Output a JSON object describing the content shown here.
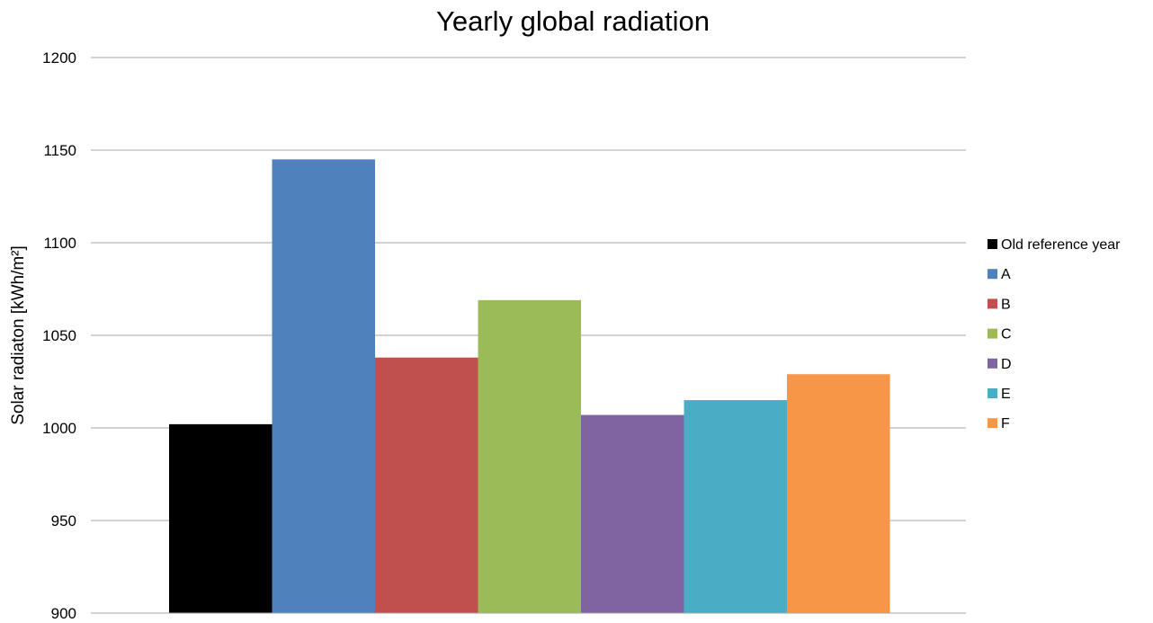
{
  "chart_data": {
    "type": "bar",
    "title": "Yearly global radiation",
    "ylabel": "Solar radiaton [kWh/m²]",
    "xlabel": "",
    "ylim": [
      900,
      1200
    ],
    "yticks": [
      900,
      950,
      1000,
      1050,
      1100,
      1150,
      1200
    ],
    "grid": true,
    "legend_position": "right",
    "series": [
      {
        "name": "Old reference year",
        "value": 1002,
        "color": "#000000"
      },
      {
        "name": "A",
        "value": 1145,
        "color": "#4f81bd"
      },
      {
        "name": "B",
        "value": 1038,
        "color": "#c0504d"
      },
      {
        "name": "C",
        "value": 1069,
        "color": "#9bbb59"
      },
      {
        "name": "D",
        "value": 1007,
        "color": "#8064a2"
      },
      {
        "name": "E",
        "value": 1015,
        "color": "#4bacc6"
      },
      {
        "name": "F",
        "value": 1029,
        "color": "#f79646"
      }
    ]
  }
}
